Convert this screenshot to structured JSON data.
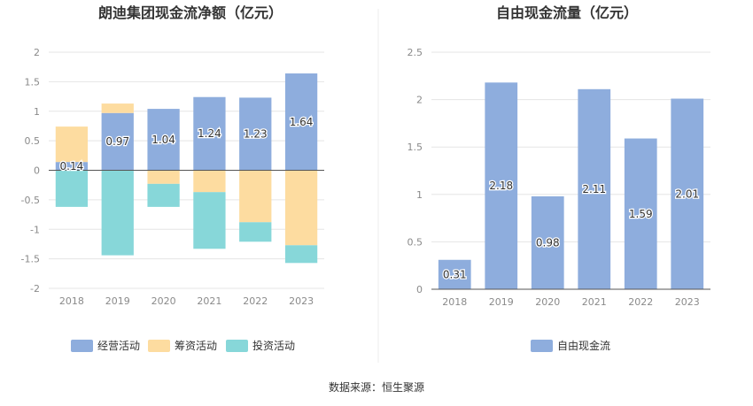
{
  "source": "数据来源：恒生聚源",
  "colors": {
    "operating": "#8eaddd",
    "financing": "#fddca0",
    "investing": "#87d7d9",
    "fcf": "#8eaddd",
    "grid": "#e5e5e5",
    "axis": "#555555"
  },
  "chart_data": [
    {
      "type": "bar",
      "stacked": true,
      "title": "朗迪集团现金流净额（亿元）",
      "categories": [
        "2018",
        "2019",
        "2020",
        "2021",
        "2022",
        "2023"
      ],
      "ylim": [
        -2,
        2
      ],
      "yticks": [
        "2",
        "1.5",
        "1",
        "0.5",
        "0",
        "-0.5",
        "-1",
        "-1.5",
        "-2"
      ],
      "grid": true,
      "legend_position": "bottom",
      "series": [
        {
          "name": "经营活动",
          "color_key": "operating",
          "values": [
            0.14,
            0.97,
            1.04,
            1.24,
            1.23,
            1.64
          ],
          "labels": [
            "0.14",
            "0.97",
            "1.04",
            "1.24",
            "1.23",
            "1.64"
          ]
        },
        {
          "name": "筹资活动",
          "color_key": "financing",
          "values": [
            0.6,
            0.16,
            -0.23,
            -0.37,
            -0.88,
            -1.27
          ]
        },
        {
          "name": "投资活动",
          "color_key": "investing",
          "values": [
            -0.62,
            -1.44,
            -0.39,
            -0.96,
            -0.33,
            -0.3
          ]
        }
      ]
    },
    {
      "type": "bar",
      "title": "自由现金流量（亿元）",
      "categories": [
        "2018",
        "2019",
        "2020",
        "2021",
        "2022",
        "2023"
      ],
      "ylim": [
        0,
        2.5
      ],
      "yticks": [
        "2.5",
        "2",
        "1.5",
        "1",
        "0.5",
        "0"
      ],
      "grid": true,
      "legend_position": "bottom",
      "series": [
        {
          "name": "自由现金流",
          "color_key": "fcf",
          "values": [
            0.31,
            2.18,
            0.98,
            2.11,
            1.59,
            2.01
          ],
          "labels": [
            "0.31",
            "2.18",
            "0.98",
            "2.11",
            "1.59",
            "2.01"
          ]
        }
      ]
    }
  ]
}
